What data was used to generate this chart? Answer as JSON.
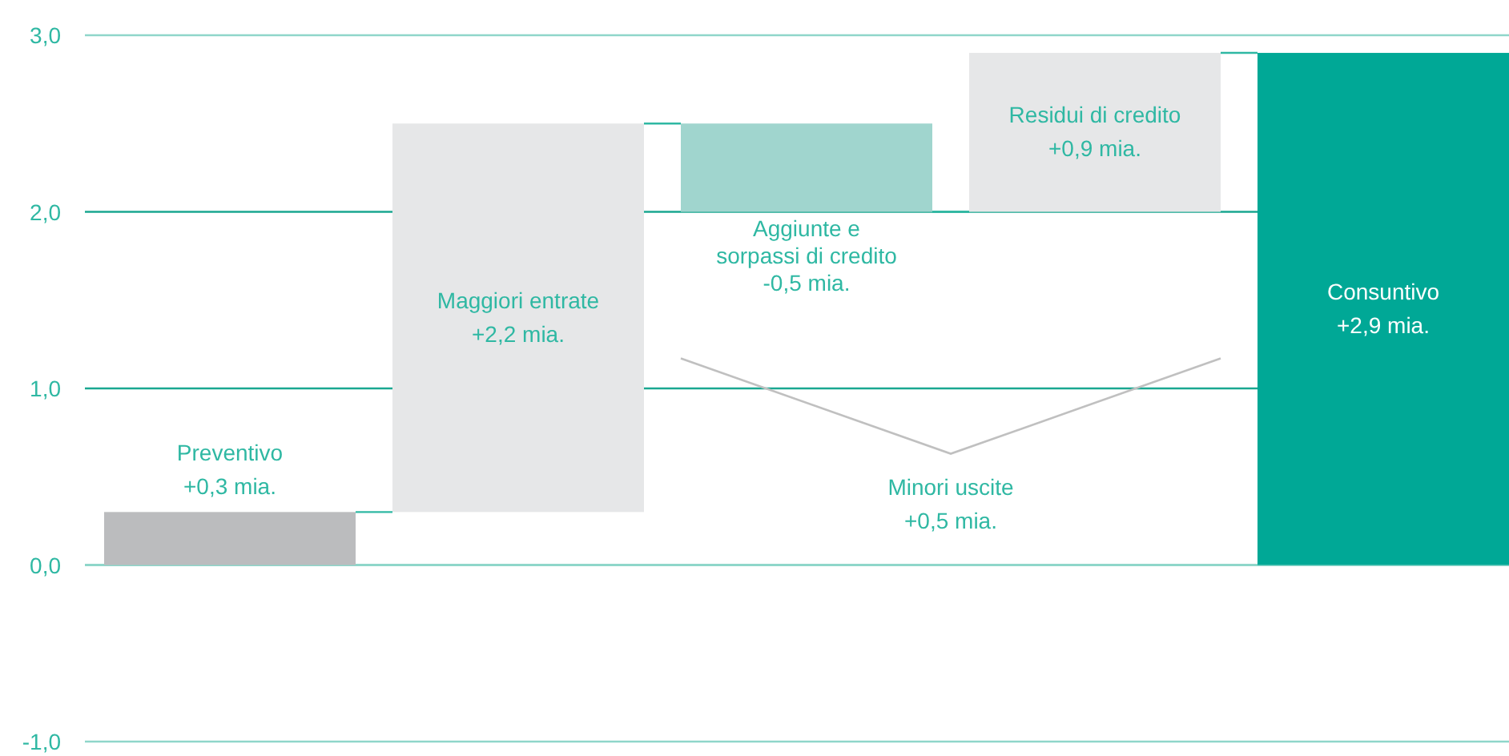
{
  "chart_data": {
    "type": "bar",
    "categories": [
      "Preventivo",
      "Maggiori entrate",
      "Aggiunte e\nsorpassi di credito",
      "Residui di credito",
      "Consuntivo"
    ],
    "base": [
      0,
      0.3,
      2.5,
      2.0,
      0
    ],
    "values": [
      0.3,
      2.2,
      -0.5,
      0.9,
      2.9
    ],
    "colors": [
      "#bbbcbe",
      "#e6e7e8",
      "#a0d5ce",
      "#e6e7e8",
      "#00a896"
    ],
    "value_labels": [
      "+0,3 mia.",
      "+2,2 mia.",
      "-0,5 mia.",
      "+0,9 mia.",
      "+2,9 mia."
    ],
    "ylim": [
      -1,
      3
    ],
    "yticks": [
      {
        "value": 3,
        "label": "3,0"
      },
      {
        "value": 2,
        "label": "2,0"
      },
      {
        "value": 1,
        "label": "1,0"
      },
      {
        "value": 0,
        "label": "0,0"
      },
      {
        "value": -1,
        "label": "-1,0"
      }
    ],
    "grid": "y",
    "ref_lines": [
      {
        "axis": "y",
        "value": 0,
        "color": "#8fd6ca"
      }
    ],
    "annotations": [
      "Minori uscite\n+0,5 mia."
    ]
  }
}
